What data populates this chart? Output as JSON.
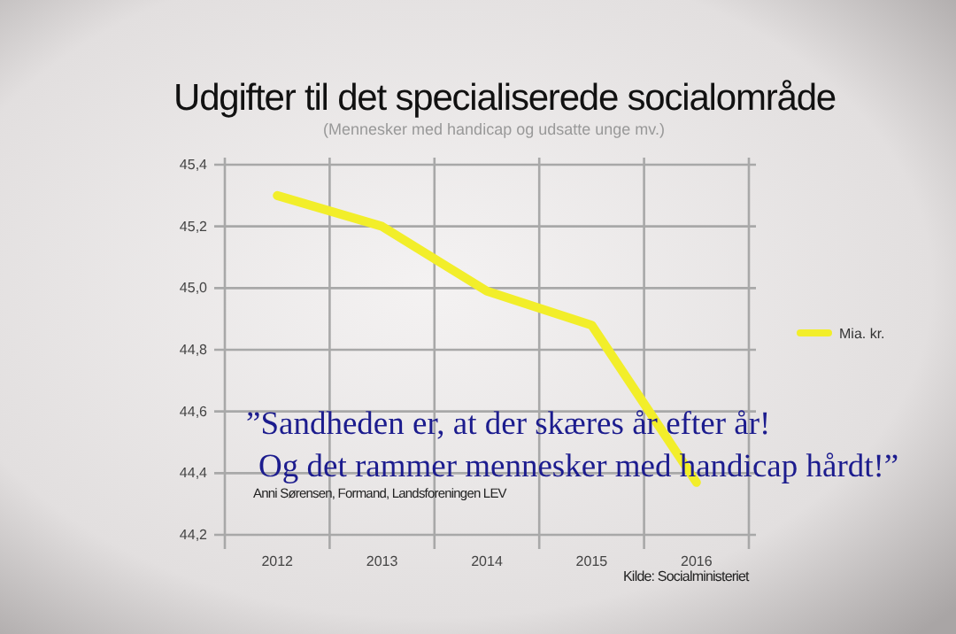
{
  "chart_data": {
    "type": "line",
    "title": "Udgifter til det specialiserede socialområde",
    "subtitle": "(Mennesker med handicap og udsatte unge mv.)",
    "categories": [
      "2012",
      "2013",
      "2014",
      "2015",
      "2016"
    ],
    "series": [
      {
        "name": "Mia. kr.",
        "color": "#f2ee2a",
        "values": [
          45.3,
          45.2,
          44.99,
          44.88,
          44.37
        ]
      }
    ],
    "ylim": [
      44.2,
      45.4
    ],
    "yticks": [
      {
        "value": 44.2,
        "label": "44,2"
      },
      {
        "value": 44.4,
        "label": "44,4"
      },
      {
        "value": 44.6,
        "label": "44,6"
      },
      {
        "value": 44.8,
        "label": "44,8"
      },
      {
        "value": 45.0,
        "label": "45,0"
      },
      {
        "value": 45.2,
        "label": "45,2"
      },
      {
        "value": 45.4,
        "label": "45,4"
      }
    ],
    "grid": true,
    "legend": "right",
    "marker": "none",
    "line_style": "solid",
    "annotations": [
      "”Sandheden er, at der skæres år efter år!",
      "Og det rammer mennesker med handicap hårdt!”",
      "Anni Sørensen, Formand, Landsforeningen LEV",
      "Kilde: Socialministeriet"
    ]
  }
}
